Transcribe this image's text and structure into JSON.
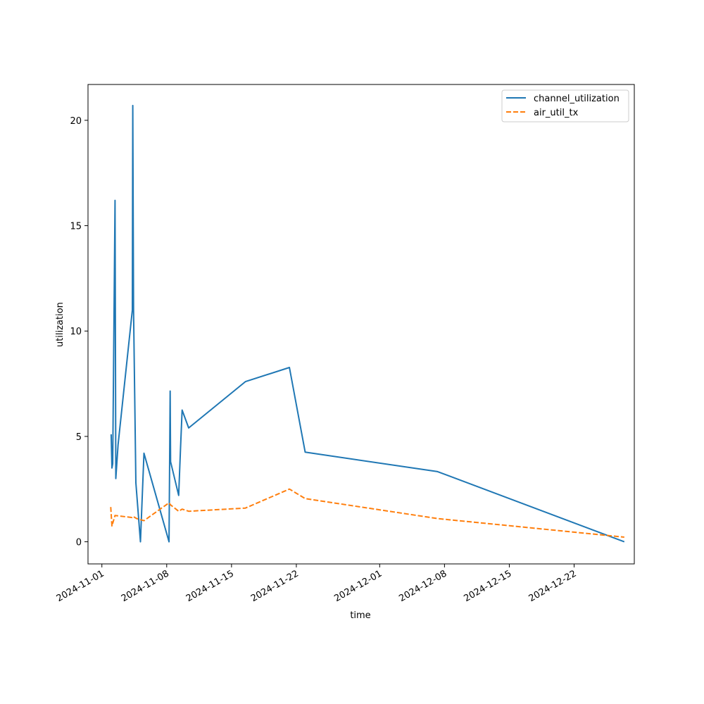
{
  "chart_data": {
    "type": "line",
    "title": "",
    "xlabel": "time",
    "ylabel": "utilization",
    "x_axis_type": "date",
    "xlim": [
      "2024-10-30T12:00",
      "2024-12-28T12:00"
    ],
    "ylim": [
      -1.05,
      21.7
    ],
    "xticks": [
      "2024-11-01",
      "2024-11-08",
      "2024-11-15",
      "2024-11-22",
      "2024-12-01",
      "2024-12-08",
      "2024-12-15",
      "2024-12-22"
    ],
    "yticks": [
      0,
      5,
      10,
      15,
      20
    ],
    "grid": false,
    "legend": "top-right",
    "series": [
      {
        "name": "channel_utilization",
        "color": "#1f77b4",
        "style": "solid",
        "points": [
          {
            "x": "2024-11-02T00:00",
            "y": 5.1
          },
          {
            "x": "2024-11-02T02:00",
            "y": 3.5
          },
          {
            "x": "2024-11-02T04:00",
            "y": 3.7
          },
          {
            "x": "2024-11-02T10:00",
            "y": 16.2
          },
          {
            "x": "2024-11-02T12:00",
            "y": 3.0
          },
          {
            "x": "2024-11-02T18:00",
            "y": 4.6
          },
          {
            "x": "2024-11-04T07:00",
            "y": 11.0
          },
          {
            "x": "2024-11-04T08:00",
            "y": 20.7
          },
          {
            "x": "2024-11-04T10:00",
            "y": 11.0
          },
          {
            "x": "2024-11-04T16:00",
            "y": 2.8
          },
          {
            "x": "2024-11-05T04:00",
            "y": 0.0
          },
          {
            "x": "2024-11-05T13:00",
            "y": 4.2
          },
          {
            "x": "2024-11-08T06:00",
            "y": 0.0
          },
          {
            "x": "2024-11-08T09:00",
            "y": 7.15
          },
          {
            "x": "2024-11-08T10:00",
            "y": 3.8
          },
          {
            "x": "2024-11-09T07:00",
            "y": 2.2
          },
          {
            "x": "2024-11-09T12:00",
            "y": 4.5
          },
          {
            "x": "2024-11-09T16:00",
            "y": 6.25
          },
          {
            "x": "2024-11-10T09:00",
            "y": 5.4
          },
          {
            "x": "2024-11-16T12:00",
            "y": 7.6
          },
          {
            "x": "2024-11-21T06:00",
            "y": 8.27
          },
          {
            "x": "2024-11-22T23:00",
            "y": 4.25
          },
          {
            "x": "2024-12-07T06:00",
            "y": 3.33
          },
          {
            "x": "2024-12-27T10:00",
            "y": 0.0
          }
        ]
      },
      {
        "name": "air_util_tx",
        "color": "#ff7f0e",
        "style": "dashed",
        "points": [
          {
            "x": "2024-11-01T23:00",
            "y": 1.65
          },
          {
            "x": "2024-11-02T02:00",
            "y": 0.75
          },
          {
            "x": "2024-11-02T10:00",
            "y": 1.25
          },
          {
            "x": "2024-11-04T06:00",
            "y": 1.15
          },
          {
            "x": "2024-11-04T09:00",
            "y": 1.2
          },
          {
            "x": "2024-11-04T18:00",
            "y": 1.1
          },
          {
            "x": "2024-11-05T13:00",
            "y": 1.0
          },
          {
            "x": "2024-11-08T06:00",
            "y": 1.85
          },
          {
            "x": "2024-11-08T10:00",
            "y": 1.75
          },
          {
            "x": "2024-11-09T07:00",
            "y": 1.45
          },
          {
            "x": "2024-11-09T16:00",
            "y": 1.55
          },
          {
            "x": "2024-11-10T09:00",
            "y": 1.45
          },
          {
            "x": "2024-11-16T12:00",
            "y": 1.6
          },
          {
            "x": "2024-11-21T06:00",
            "y": 2.5
          },
          {
            "x": "2024-11-22T23:00",
            "y": 2.05
          },
          {
            "x": "2024-12-07T06:00",
            "y": 1.1
          },
          {
            "x": "2024-12-27T10:00",
            "y": 0.22
          }
        ]
      }
    ]
  }
}
